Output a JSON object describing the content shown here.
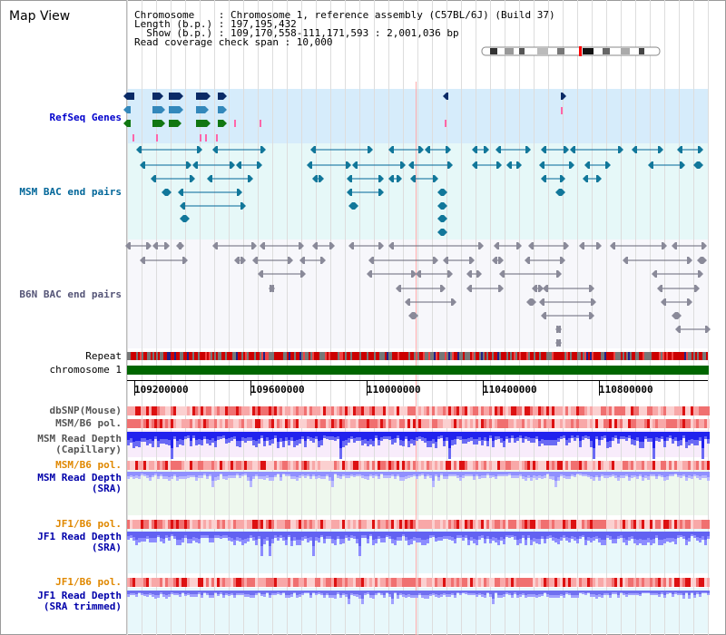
{
  "view_title": "Map View",
  "header": {
    "chromosome": "Chromosome    : Chromosome 1, reference assembly (C57BL/6J) (Build 37)",
    "length": "Length (b.p.) : 197,195,432",
    "show": "  Show (b.p.) : 109,170,558-111,171,593 : 2,001,036 bp",
    "coverage": "Read coverage check span : 10,000"
  },
  "tracks": {
    "refseq": "RefSeq Genes",
    "msm_bac": "MSM BAC end pairs",
    "b6n_bac": "B6N BAC end pairs",
    "repeat": "Repeat",
    "chromosome": "chromosome 1",
    "dbsnp": "dbSNP(Mouse)",
    "msm_b6_pol": "MSM/B6 pol.",
    "msm_cap_1": "MSM Read Depth",
    "msm_cap_2": "(Capillary)",
    "msm_b6_pol_2": "MSM/B6 pol.",
    "msm_sra_1": "MSM Read Depth",
    "msm_sra_2": "(SRA)",
    "jf1_b6_pol": "JF1/B6 pol.",
    "jf1_sra_1": "JF1 Read Depth",
    "jf1_sra_2": "(SRA)",
    "jf1_b6_pol_2": "JF1/B6 pol.",
    "jf1_trim_1": "JF1 Read Depth",
    "jf1_trim_2": "(SRA trimmed)"
  },
  "axis_ticks": [
    "109200000",
    "109600000",
    "110000000",
    "110400000",
    "110800000"
  ],
  "colors": {
    "refseq_bg": "#d6ecfb",
    "bac_bg": "#e6f8f8",
    "b6n_bg": "#f7f7fb",
    "chromosome_bar": "#006600",
    "msm_label": "#0000aa",
    "refseq_label": "#0000cc",
    "bac_label": "#006699",
    "pol_label": "#e08800",
    "depth_dark": "#1a1af0",
    "depth_light": "#8888ff"
  }
}
